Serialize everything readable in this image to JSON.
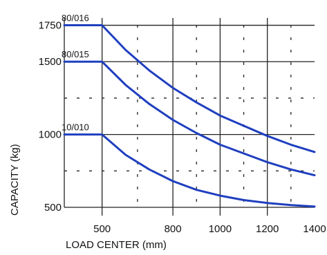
{
  "chart_data": {
    "type": "line",
    "title": "",
    "xlabel": "LOAD CENTER (mm)",
    "ylabel": "CAPACITY (kg)",
    "xlim": [
      340,
      1400
    ],
    "ylim": [
      500,
      1800
    ],
    "x_ticks": [
      "500",
      "800",
      "1000",
      "1200",
      "1400"
    ],
    "x_tick_values": [
      500,
      800,
      1000,
      1200,
      1400
    ],
    "y_ticks": [
      "500",
      "1000",
      "1500",
      "1750"
    ],
    "y_tick_values": [
      500,
      1000,
      1500,
      1750
    ],
    "grid": true,
    "line_color": "#1f3fbf",
    "series": [
      {
        "name": "80/016",
        "x": [
          340,
          500,
          600,
          700,
          800,
          900,
          1000,
          1100,
          1200,
          1300,
          1400
        ],
        "y": [
          1750,
          1750,
          1580,
          1440,
          1320,
          1220,
          1130,
          1060,
          990,
          930,
          880
        ]
      },
      {
        "name": "80/015",
        "x": [
          340,
          500,
          600,
          700,
          800,
          900,
          1000,
          1100,
          1200,
          1300,
          1400
        ],
        "y": [
          1500,
          1500,
          1340,
          1210,
          1100,
          1010,
          930,
          870,
          810,
          760,
          720
        ]
      },
      {
        "name": "10/010",
        "x": [
          340,
          500,
          600,
          700,
          800,
          900,
          1000,
          1100,
          1200,
          1300,
          1400
        ],
        "y": [
          1000,
          1000,
          860,
          760,
          680,
          620,
          580,
          550,
          530,
          515,
          505
        ]
      }
    ]
  }
}
